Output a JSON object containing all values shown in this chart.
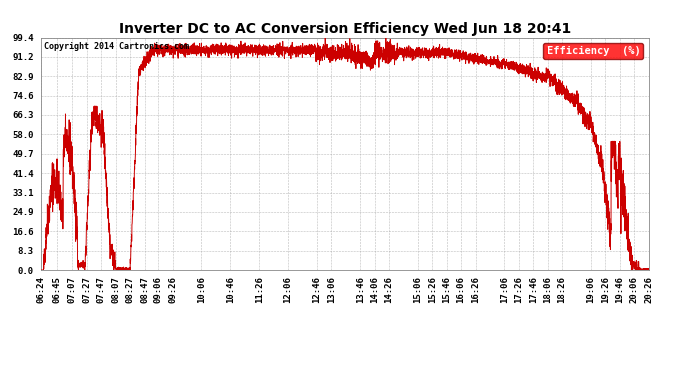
{
  "title": "Inverter DC to AC Conversion Efficiency Wed Jun 18 20:41",
  "copyright": "Copyright 2014 Cartronics.com",
  "legend_label": "Efficiency  (%)",
  "line_color": "#cc0000",
  "background_color": "#ffffff",
  "plot_bg_color": "#ffffff",
  "yticks": [
    0.0,
    8.3,
    16.6,
    24.9,
    33.1,
    41.4,
    49.7,
    58.0,
    66.3,
    74.6,
    82.9,
    91.2,
    99.4
  ],
  "xtick_labels": [
    "06:24",
    "06:45",
    "07:07",
    "07:27",
    "07:47",
    "08:07",
    "08:27",
    "08:47",
    "09:06",
    "09:26",
    "10:06",
    "10:46",
    "11:26",
    "12:06",
    "12:46",
    "13:06",
    "13:46",
    "14:06",
    "14:26",
    "15:06",
    "15:26",
    "15:46",
    "16:06",
    "16:26",
    "17:06",
    "17:26",
    "17:46",
    "18:06",
    "18:26",
    "19:06",
    "19:26",
    "19:46",
    "20:06",
    "20:26"
  ],
  "ylim": [
    0.0,
    99.4
  ],
  "grid_color": "#aaaaaa",
  "title_fontsize": 10,
  "axis_fontsize": 6.5,
  "legend_fontsize": 7.5
}
